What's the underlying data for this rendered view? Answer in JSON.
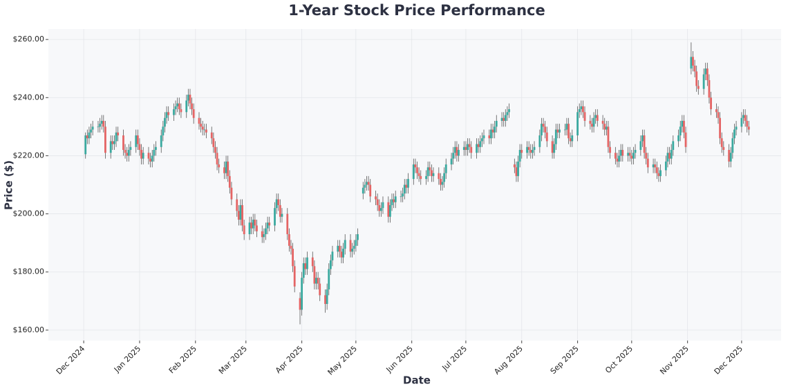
{
  "chart_data": {
    "type": "candlestick",
    "title": "1-Year Stock Price Performance",
    "x_label": "Date",
    "y_label": "Price ($)",
    "up_color": "#3aa99f",
    "down_color": "#e46464",
    "wick_color": "#555555",
    "grid": true,
    "xlim": [
      -19.6,
      386.9
    ],
    "ylim": [
      156.4,
      263.6
    ],
    "xticks": [
      {
        "value": 0,
        "label": "Dec 2024"
      },
      {
        "value": 31,
        "label": "Jan 2025"
      },
      {
        "value": 62,
        "label": "Feb 2025"
      },
      {
        "value": 90,
        "label": "Mar 2025"
      },
      {
        "value": 121,
        "label": "Apr 2025"
      },
      {
        "value": 151,
        "label": "May 2025"
      },
      {
        "value": 182,
        "label": "Jun 2025"
      },
      {
        "value": 212,
        "label": "Jul 2025"
      },
      {
        "value": 243,
        "label": "Aug 2025"
      },
      {
        "value": 274,
        "label": "Sep 2025"
      },
      {
        "value": 304,
        "label": "Oct 2025"
      },
      {
        "value": 335,
        "label": "Nov 2025"
      },
      {
        "value": 365,
        "label": "Dec 2025"
      }
    ],
    "yticks": [
      {
        "value": 160,
        "label": "$160.00"
      },
      {
        "value": 180,
        "label": "$180.00"
      },
      {
        "value": 200,
        "label": "$200.00"
      },
      {
        "value": 220,
        "label": "$220.00"
      },
      {
        "value": 240,
        "label": "$240.00"
      },
      {
        "value": 260,
        "label": "$260.00"
      }
    ],
    "x": [
      1,
      2,
      3,
      4,
      5,
      8,
      9,
      10,
      11,
      12,
      15,
      16,
      17,
      18,
      19,
      22,
      23,
      24,
      25,
      26,
      29,
      30,
      31,
      32,
      33,
      36,
      37,
      38,
      39,
      40,
      43,
      44,
      45,
      46,
      47,
      50,
      51,
      52,
      53,
      54,
      57,
      58,
      59,
      60,
      61,
      64,
      65,
      66,
      67,
      68,
      71,
      72,
      73,
      74,
      75,
      78,
      79,
      80,
      81,
      82,
      85,
      86,
      87,
      88,
      89,
      92,
      93,
      94,
      95,
      96,
      99,
      100,
      101,
      102,
      103,
      106,
      107,
      108,
      109,
      110,
      113,
      114,
      115,
      116,
      117,
      120,
      121,
      122,
      123,
      124,
      127,
      128,
      129,
      130,
      131,
      134,
      135,
      136,
      137,
      138,
      141,
      142,
      143,
      144,
      145,
      148,
      149,
      150,
      151,
      152,
      155,
      156,
      157,
      158,
      159,
      162,
      163,
      164,
      165,
      166,
      169,
      170,
      171,
      172,
      173,
      176,
      177,
      178,
      179,
      180,
      183,
      184,
      185,
      186,
      187,
      190,
      191,
      192,
      193,
      194,
      197,
      198,
      199,
      200,
      201,
      204,
      205,
      206,
      207,
      208,
      211,
      212,
      213,
      214,
      215,
      218,
      219,
      220,
      221,
      222,
      225,
      226,
      227,
      228,
      229,
      232,
      233,
      234,
      235,
      236,
      239,
      240,
      241,
      242,
      243,
      246,
      247,
      248,
      249,
      250,
      253,
      254,
      255,
      256,
      257,
      260,
      261,
      262,
      263,
      264,
      267,
      268,
      269,
      270,
      271,
      274,
      275,
      276,
      277,
      278,
      281,
      282,
      283,
      284,
      285,
      288,
      289,
      290,
      291,
      292,
      295,
      296,
      297,
      298,
      299,
      302,
      303,
      304,
      305,
      306,
      309,
      310,
      311,
      312,
      313,
      316,
      317,
      318,
      319,
      320,
      323,
      324,
      325,
      326,
      327,
      330,
      331,
      332,
      333,
      334,
      337,
      338,
      339,
      340,
      341,
      344,
      345,
      346,
      347,
      348,
      351,
      352,
      353,
      354,
      355,
      358,
      359,
      360,
      361,
      362,
      365,
      366,
      367,
      368,
      369
    ],
    "open": [
      220.5,
      227,
      226,
      228,
      229,
      230,
      230,
      231,
      232,
      230,
      221,
      225,
      224,
      225,
      228,
      227,
      222,
      221,
      220,
      222,
      223,
      227,
      224,
      222,
      219,
      221,
      219,
      218,
      220,
      222,
      223,
      227,
      230,
      233,
      235,
      234,
      236,
      237,
      238,
      236,
      235,
      239,
      241,
      238,
      236,
      233,
      231,
      230,
      229,
      229,
      228,
      226,
      223,
      221,
      217,
      216,
      214,
      218,
      213,
      209,
      205,
      201,
      198,
      203,
      196,
      193,
      197,
      195,
      198,
      196,
      194,
      192,
      193,
      195,
      197,
      196,
      202,
      205,
      203,
      199,
      200,
      193,
      189,
      188,
      182,
      171,
      167,
      178,
      183,
      181,
      185,
      182,
      176,
      178,
      176,
      172,
      169,
      174,
      181,
      184,
      187,
      189,
      187,
      185,
      188,
      191,
      187,
      188,
      189,
      191,
      207,
      209,
      210,
      211,
      210,
      206,
      205,
      203,
      201,
      202,
      204,
      199,
      203,
      205,
      204,
      206,
      206,
      207,
      210,
      209,
      212,
      217,
      216,
      214,
      213,
      212,
      213,
      216,
      215,
      213,
      214,
      212,
      210,
      211,
      214,
      217,
      219,
      221,
      223,
      220,
      222,
      223,
      222,
      224,
      223,
      221,
      224,
      223,
      225,
      226,
      227,
      226,
      229,
      228,
      230,
      232,
      233,
      232,
      234,
      235,
      217,
      216,
      213,
      218,
      222,
      221,
      223,
      222,
      221,
      222,
      223,
      227,
      231,
      230,
      228,
      225,
      221,
      224,
      229,
      228,
      229,
      229,
      231,
      226,
      225,
      227,
      235,
      236,
      237,
      235,
      232,
      231,
      230,
      233,
      234,
      232,
      231,
      229,
      230,
      223,
      221,
      219,
      218,
      220,
      222,
      220,
      221,
      220,
      219,
      221,
      222,
      225,
      227,
      221,
      219,
      216,
      217,
      216,
      214,
      213,
      215,
      218,
      221,
      219,
      222,
      225,
      227,
      230,
      232,
      228,
      250,
      254,
      251,
      249,
      244,
      243,
      248,
      250,
      246,
      240,
      236,
      235,
      233,
      226,
      223,
      222,
      218,
      221,
      226,
      229,
      230,
      233,
      234,
      232,
      230
    ],
    "high": [
      228,
      229,
      230,
      231,
      232,
      232,
      233,
      234,
      234,
      232,
      227,
      227,
      227,
      230,
      230,
      229,
      224,
      223,
      224,
      225,
      229,
      229,
      226,
      224,
      223,
      223,
      221,
      222,
      224,
      225,
      229,
      232,
      235,
      237,
      237,
      238,
      239,
      240,
      240,
      238,
      241,
      243,
      243,
      240,
      238,
      235,
      233,
      232,
      231,
      231,
      230,
      228,
      225,
      223,
      219,
      218,
      220,
      220,
      215,
      211,
      207,
      203,
      205,
      205,
      198,
      199,
      199,
      200,
      200,
      198,
      196,
      195,
      197,
      199,
      199,
      204,
      207,
      207,
      205,
      202,
      202,
      195,
      191,
      190,
      184,
      173,
      180,
      185,
      185,
      187,
      187,
      184,
      180,
      180,
      178,
      174,
      176,
      183,
      186,
      189,
      191,
      191,
      189,
      190,
      193,
      193,
      190,
      191,
      193,
      195,
      211,
      212,
      213,
      213,
      212,
      208,
      207,
      205,
      204,
      206,
      206,
      205,
      207,
      207,
      208,
      208,
      209,
      212,
      212,
      214,
      219,
      219,
      218,
      216,
      215,
      215,
      218,
      218,
      217,
      216,
      216,
      214,
      213,
      216,
      219,
      221,
      223,
      225,
      225,
      224,
      225,
      225,
      226,
      226,
      225,
      226,
      226,
      227,
      228,
      229,
      229,
      231,
      231,
      232,
      234,
      235,
      235,
      236,
      237,
      238,
      219,
      218,
      220,
      224,
      224,
      225,
      225,
      224,
      224,
      225,
      229,
      233,
      233,
      232,
      230,
      227,
      226,
      231,
      231,
      231,
      231,
      233,
      233,
      228,
      229,
      237,
      238,
      239,
      239,
      237,
      234,
      233,
      235,
      236,
      236,
      234,
      233,
      232,
      232,
      225,
      223,
      221,
      222,
      224,
      224,
      223,
      223,
      222,
      223,
      224,
      227,
      229,
      229,
      223,
      221,
      219,
      219,
      218,
      216,
      217,
      220,
      223,
      223,
      224,
      227,
      229,
      232,
      234,
      234,
      230,
      259,
      256,
      253,
      251,
      246,
      250,
      252,
      252,
      248,
      242,
      238,
      237,
      235,
      228,
      225,
      224,
      223,
      228,
      231,
      232,
      235,
      236,
      236,
      234,
      232
    ],
    "low": [
      219,
      224,
      224,
      226,
      227,
      228,
      228,
      229,
      228,
      219,
      219,
      222,
      222,
      223,
      225,
      220,
      219,
      218,
      218,
      220,
      221,
      222,
      220,
      217,
      217,
      217,
      216,
      216,
      218,
      220,
      221,
      225,
      228,
      231,
      232,
      232,
      234,
      235,
      234,
      233,
      233,
      237,
      236,
      234,
      231,
      229,
      228,
      227,
      227,
      226,
      224,
      221,
      219,
      215,
      214,
      212,
      212,
      211,
      207,
      203,
      199,
      196,
      196,
      194,
      191,
      191,
      193,
      193,
      194,
      192,
      190,
      190,
      191,
      193,
      194,
      194,
      200,
      201,
      197,
      197,
      191,
      187,
      186,
      180,
      173,
      162,
      165,
      176,
      179,
      179,
      180,
      174,
      174,
      174,
      170,
      166,
      167,
      172,
      179,
      182,
      185,
      185,
      183,
      183,
      186,
      185,
      185,
      186,
      187,
      189,
      205,
      207,
      208,
      208,
      204,
      203,
      201,
      199,
      199,
      200,
      197,
      197,
      201,
      202,
      202,
      204,
      204,
      205,
      207,
      207,
      210,
      214,
      212,
      211,
      210,
      210,
      211,
      213,
      211,
      211,
      210,
      208,
      208,
      209,
      212,
      215,
      217,
      219,
      218,
      218,
      220,
      220,
      220,
      221,
      219,
      219,
      221,
      221,
      223,
      224,
      224,
      224,
      226,
      226,
      228,
      230,
      230,
      230,
      232,
      233,
      214,
      211,
      211,
      216,
      219,
      219,
      220,
      219,
      219,
      220,
      221,
      225,
      228,
      226,
      223,
      219,
      219,
      222,
      226,
      226,
      227,
      227,
      224,
      223,
      223,
      225,
      233,
      234,
      233,
      230,
      229,
      228,
      228,
      231,
      230,
      229,
      227,
      227,
      221,
      219,
      217,
      216,
      216,
      218,
      218,
      218,
      218,
      217,
      217,
      219,
      220,
      223,
      219,
      217,
      214,
      214,
      214,
      212,
      211,
      211,
      213,
      216,
      217,
      217,
      220,
      223,
      225,
      228,
      226,
      221,
      248,
      249,
      247,
      242,
      241,
      241,
      246,
      244,
      238,
      234,
      233,
      231,
      224,
      221,
      220,
      216,
      216,
      219,
      224,
      227,
      228,
      231,
      230,
      228,
      227
    ],
    "close": [
      227,
      226,
      228,
      229,
      230,
      230,
      231,
      232,
      230,
      221,
      225,
      224,
      225,
      228,
      227,
      222,
      221,
      220,
      222,
      223,
      227,
      224,
      222,
      219,
      221,
      219,
      218,
      220,
      222,
      223,
      227,
      230,
      233,
      235,
      234,
      236,
      237,
      238,
      236,
      235,
      239,
      241,
      238,
      236,
      233,
      231,
      230,
      229,
      229,
      228,
      226,
      223,
      221,
      217,
      216,
      214,
      218,
      213,
      209,
      205,
      201,
      198,
      203,
      196,
      193,
      197,
      195,
      198,
      196,
      194,
      192,
      193,
      195,
      197,
      196,
      202,
      205,
      203,
      199,
      200,
      193,
      189,
      188,
      182,
      175,
      167,
      178,
      183,
      181,
      185,
      182,
      176,
      178,
      176,
      172,
      169,
      174,
      181,
      184,
      187,
      189,
      187,
      185,
      188,
      191,
      187,
      188,
      189,
      191,
      193,
      209,
      210,
      211,
      210,
      206,
      205,
      203,
      201,
      202,
      204,
      199,
      203,
      205,
      204,
      206,
      206,
      207,
      210,
      209,
      212,
      217,
      216,
      214,
      213,
      212,
      213,
      216,
      215,
      213,
      214,
      212,
      210,
      211,
      214,
      217,
      219,
      221,
      223,
      220,
      222,
      223,
      222,
      224,
      223,
      221,
      224,
      223,
      225,
      226,
      227,
      226,
      229,
      228,
      230,
      232,
      233,
      232,
      234,
      235,
      236,
      216,
      213,
      218,
      222,
      221,
      223,
      222,
      221,
      222,
      223,
      227,
      231,
      230,
      228,
      225,
      221,
      224,
      229,
      228,
      229,
      229,
      231,
      226,
      225,
      227,
      235,
      236,
      237,
      235,
      232,
      231,
      230,
      233,
      234,
      232,
      231,
      229,
      230,
      223,
      221,
      219,
      218,
      220,
      222,
      220,
      221,
      220,
      219,
      221,
      222,
      225,
      227,
      221,
      219,
      216,
      217,
      216,
      214,
      213,
      215,
      218,
      221,
      219,
      222,
      225,
      227,
      230,
      232,
      228,
      223,
      254,
      251,
      249,
      244,
      243,
      248,
      250,
      246,
      240,
      236,
      235,
      233,
      226,
      223,
      222,
      218,
      221,
      226,
      229,
      230,
      233,
      234,
      232,
      230,
      229
    ]
  }
}
